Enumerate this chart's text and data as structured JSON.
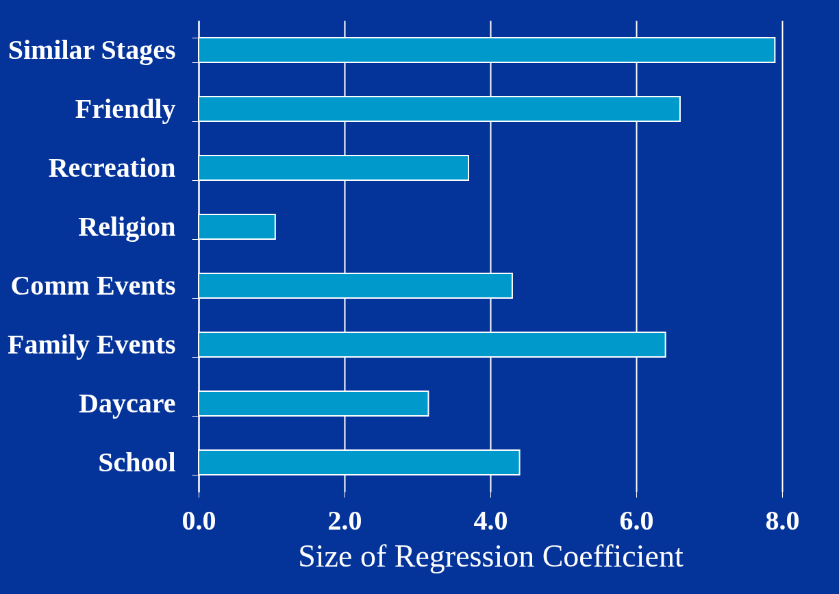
{
  "chart_data": {
    "type": "bar",
    "orientation": "horizontal",
    "xlabel": "Size of Regression Coefficient",
    "categories": [
      "Similar Stages",
      "Friendly",
      "Recreation",
      "Religion",
      "Comm Events",
      "Family Events",
      "Daycare",
      "School"
    ],
    "values": [
      7.9,
      6.6,
      3.7,
      1.05,
      4.3,
      6.4,
      3.15,
      4.4
    ],
    "color": "#0099cc",
    "xlim": [
      0,
      8
    ],
    "xticks": [
      {
        "value": 0,
        "label": "0.0"
      },
      {
        "value": 2,
        "label": "2.0"
      },
      {
        "value": 4,
        "label": "4.0"
      },
      {
        "value": 6,
        "label": "6.0"
      },
      {
        "value": 8,
        "label": "8.0"
      }
    ],
    "grid": "x"
  }
}
